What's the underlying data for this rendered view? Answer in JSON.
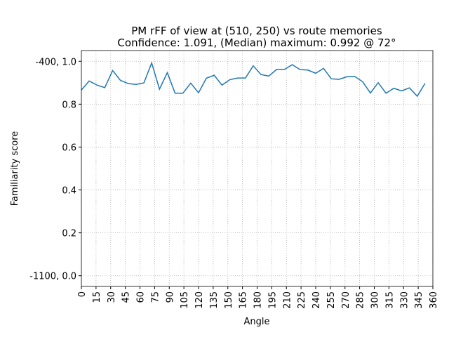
{
  "chart_data": {
    "type": "line",
    "title": "PM rFF of view at (510, 250) vs route memories",
    "subtitle": "Confidence: 1.091, (Median) maximum: 0.992 @ 72°",
    "x_label": "Angle",
    "y_label": "Familiarity score",
    "x": [
      0,
      8,
      16,
      24,
      32,
      40,
      48,
      56,
      64,
      72,
      80,
      88,
      96,
      104,
      112,
      120,
      128,
      136,
      144,
      152,
      160,
      168,
      176,
      184,
      192,
      200,
      208,
      216,
      224,
      232,
      240,
      248,
      256,
      264,
      272,
      280,
      288,
      296,
      304,
      312,
      320,
      328,
      336,
      344,
      352
    ],
    "series": [
      {
        "color": "#1f77b4",
        "values": [
          0.866,
          0.908,
          0.889,
          0.877,
          0.957,
          0.911,
          0.896,
          0.892,
          0.899,
          0.992,
          0.87,
          0.947,
          0.851,
          0.851,
          0.898,
          0.853,
          0.921,
          0.935,
          0.889,
          0.914,
          0.922,
          0.922,
          0.979,
          0.938,
          0.931,
          0.962,
          0.962,
          0.984,
          0.961,
          0.959,
          0.944,
          0.967,
          0.918,
          0.916,
          0.928,
          0.929,
          0.905,
          0.852,
          0.9,
          0.851,
          0.874,
          0.862,
          0.876,
          0.837,
          0.897
        ]
      }
    ],
    "xlim": [
      0,
      360
    ],
    "ylim": [
      -0.05,
      1.05
    ],
    "xticks": [
      0,
      15,
      30,
      45,
      60,
      75,
      90,
      105,
      120,
      135,
      150,
      165,
      180,
      195,
      210,
      225,
      240,
      255,
      270,
      285,
      300,
      315,
      330,
      345,
      360
    ],
    "yticks": [
      {
        "value": 0.0,
        "label": "-1100, 0.0"
      },
      {
        "value": 0.2,
        "label": "0.2"
      },
      {
        "value": 0.4,
        "label": "0.4"
      },
      {
        "value": 0.6,
        "label": "0.6"
      },
      {
        "value": 0.8,
        "label": "0.8"
      },
      {
        "value": 1.0,
        "label": "-400, 1.0"
      }
    ],
    "grid": true
  }
}
